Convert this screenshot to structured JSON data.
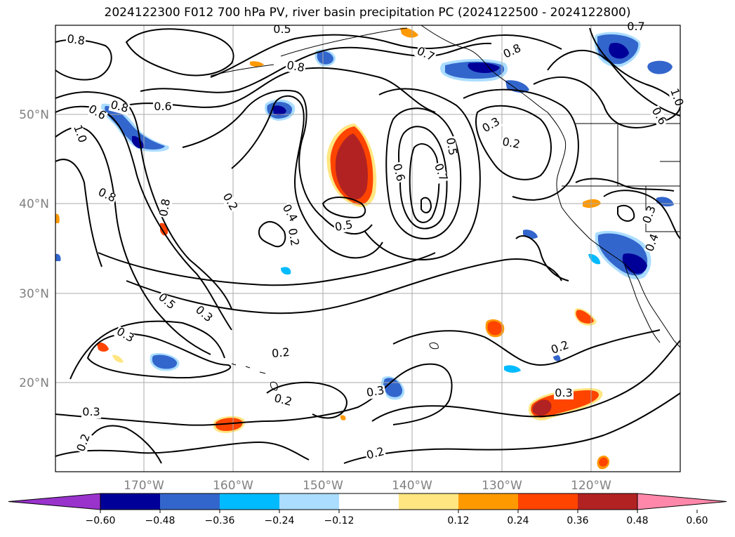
{
  "title": "2024122300 F012 700 hPa PV, river basin precipitation PC (2024122500 - 2024122800)",
  "map": {
    "lon_labels": [
      "170°W",
      "160°W",
      "150°W",
      "140°W",
      "130°W",
      "120°W"
    ],
    "lat_labels": [
      "50°N",
      "40°N",
      "30°N",
      "20°N"
    ]
  },
  "contour_labels": [
    "0.8",
    "0.5",
    "0.8",
    "0.7",
    "0.8",
    "0.8",
    "1.0",
    "0.6",
    "0.7",
    "0.6",
    "0.8",
    "1.0",
    "0.3",
    "0.2",
    "0.5",
    "0.6",
    "0.7",
    "0.8",
    "0.2",
    "0.4",
    "0.5",
    "0.6",
    "0.3",
    "0.4",
    "0.5",
    "0.3",
    "0.3",
    "0.2",
    "0.3",
    "0.2",
    "0.3",
    "0.2",
    "0.3",
    "0.2",
    "0.2",
    "0.2"
  ],
  "colorbar": {
    "ticks": [
      "−0.60",
      "−0.48",
      "−0.36",
      "−0.24",
      "−0.12",
      "0.12",
      "0.24",
      "0.36",
      "0.48",
      "0.60"
    ],
    "colors": [
      "#9933cc",
      "#000099",
      "#3366cc",
      "#00bbff",
      "#aaddff",
      "#ffffff",
      "#ffe680",
      "#ff9900",
      "#ff4400",
      "#b22222",
      "#ff88aa"
    ]
  },
  "colors": {
    "neg_dark": "#000099",
    "neg_mid": "#3366cc",
    "neg_light": "#00bbff",
    "pos_light": "#ffe680",
    "pos_mid": "#ff9900",
    "pos_strong": "#ff4400",
    "pos_dark": "#b22222",
    "grid": "#aaaaaa",
    "contour": "#000000",
    "coast": "#000000"
  }
}
